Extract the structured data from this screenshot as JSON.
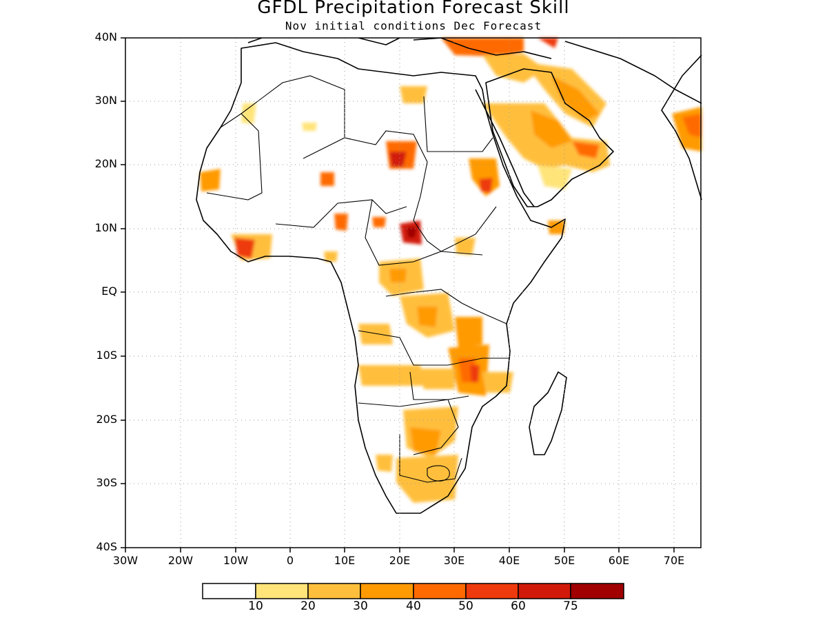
{
  "title": "GFDL Precipitation Forecast Skill",
  "subtitle": "Nov initial conditions  Dec Forecast",
  "map": {
    "lat_labels": [
      "40N",
      "30N",
      "20N",
      "10N",
      "EQ",
      "10S",
      "20S",
      "30S",
      "40S"
    ],
    "lon_labels": [
      "30W",
      "20W",
      "10W",
      "0",
      "10E",
      "20E",
      "30E",
      "40E",
      "50E",
      "60E",
      "70E"
    ],
    "lat_range": [
      -40,
      40
    ],
    "lon_range": [
      -30,
      75
    ],
    "grid": "dotted"
  },
  "colorbar": {
    "labels": [
      "10",
      "20",
      "30",
      "40",
      "50",
      "60",
      "75"
    ],
    "colors": [
      "#ffffff",
      "#ffe47a",
      "#ffbf3c",
      "#ff9a00",
      "#ff6a00",
      "#ee3a0c",
      "#d21a0a",
      "#a00000"
    ]
  }
}
